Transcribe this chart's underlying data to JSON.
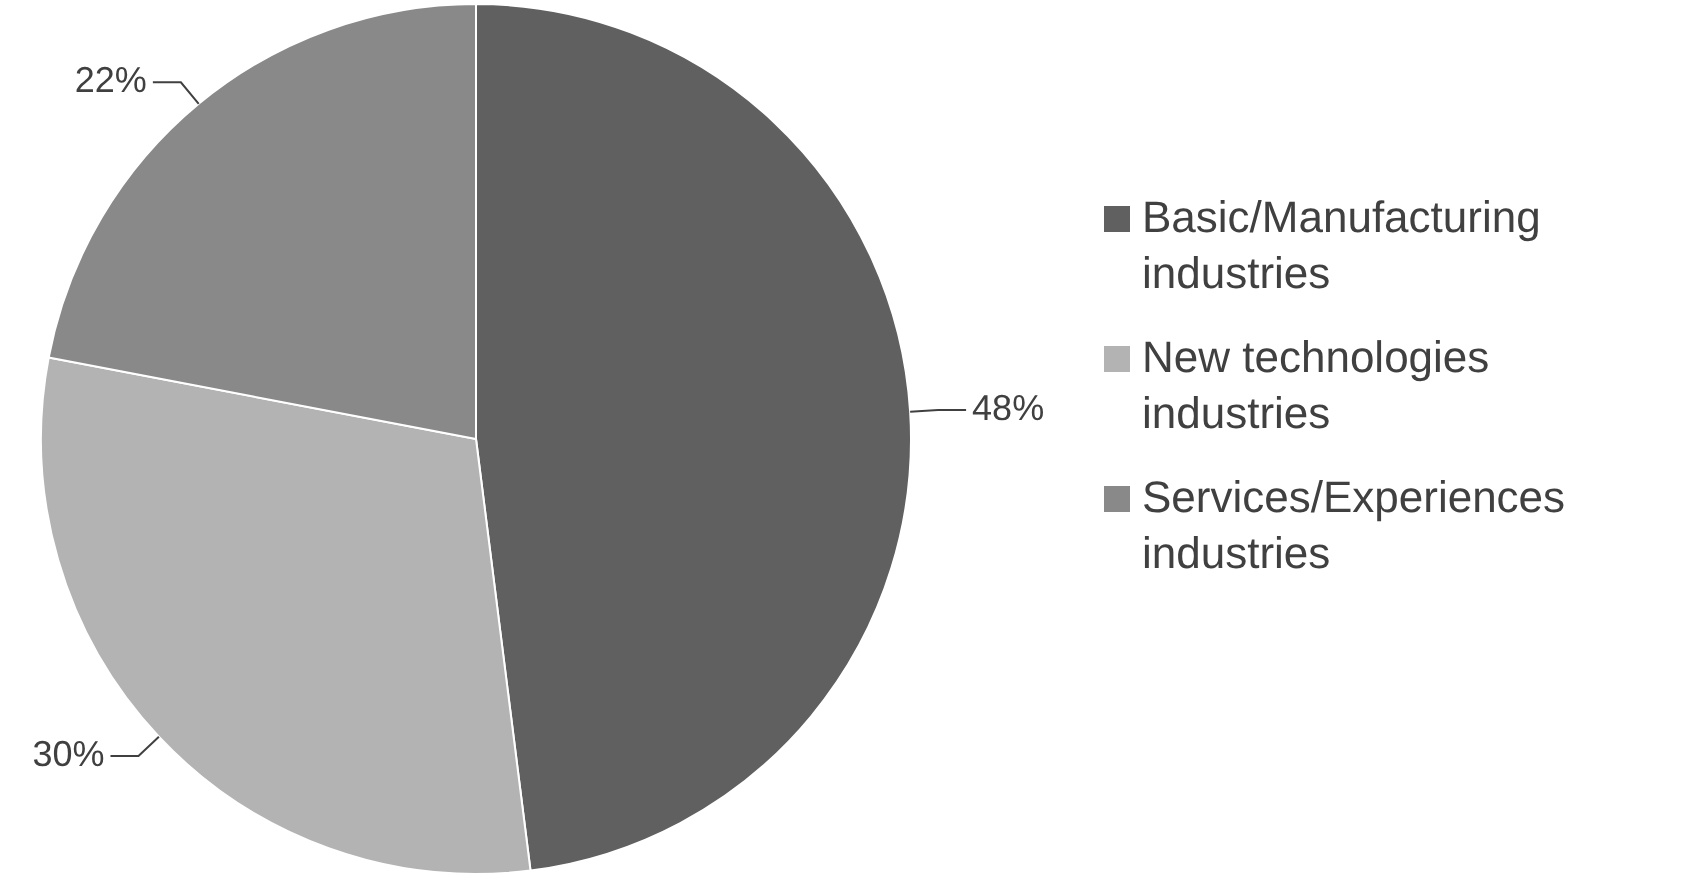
{
  "chart_data": {
    "type": "pie",
    "categories": [
      "Basic/Manufacturing industries",
      "New technologies industries",
      "Services/Experiences industries"
    ],
    "values": [
      48,
      30,
      22
    ],
    "colors": [
      "#606060",
      "#b3b3b3",
      "#898989"
    ],
    "value_labels": [
      "48%",
      "30%",
      "22%"
    ],
    "legend": "right"
  }
}
